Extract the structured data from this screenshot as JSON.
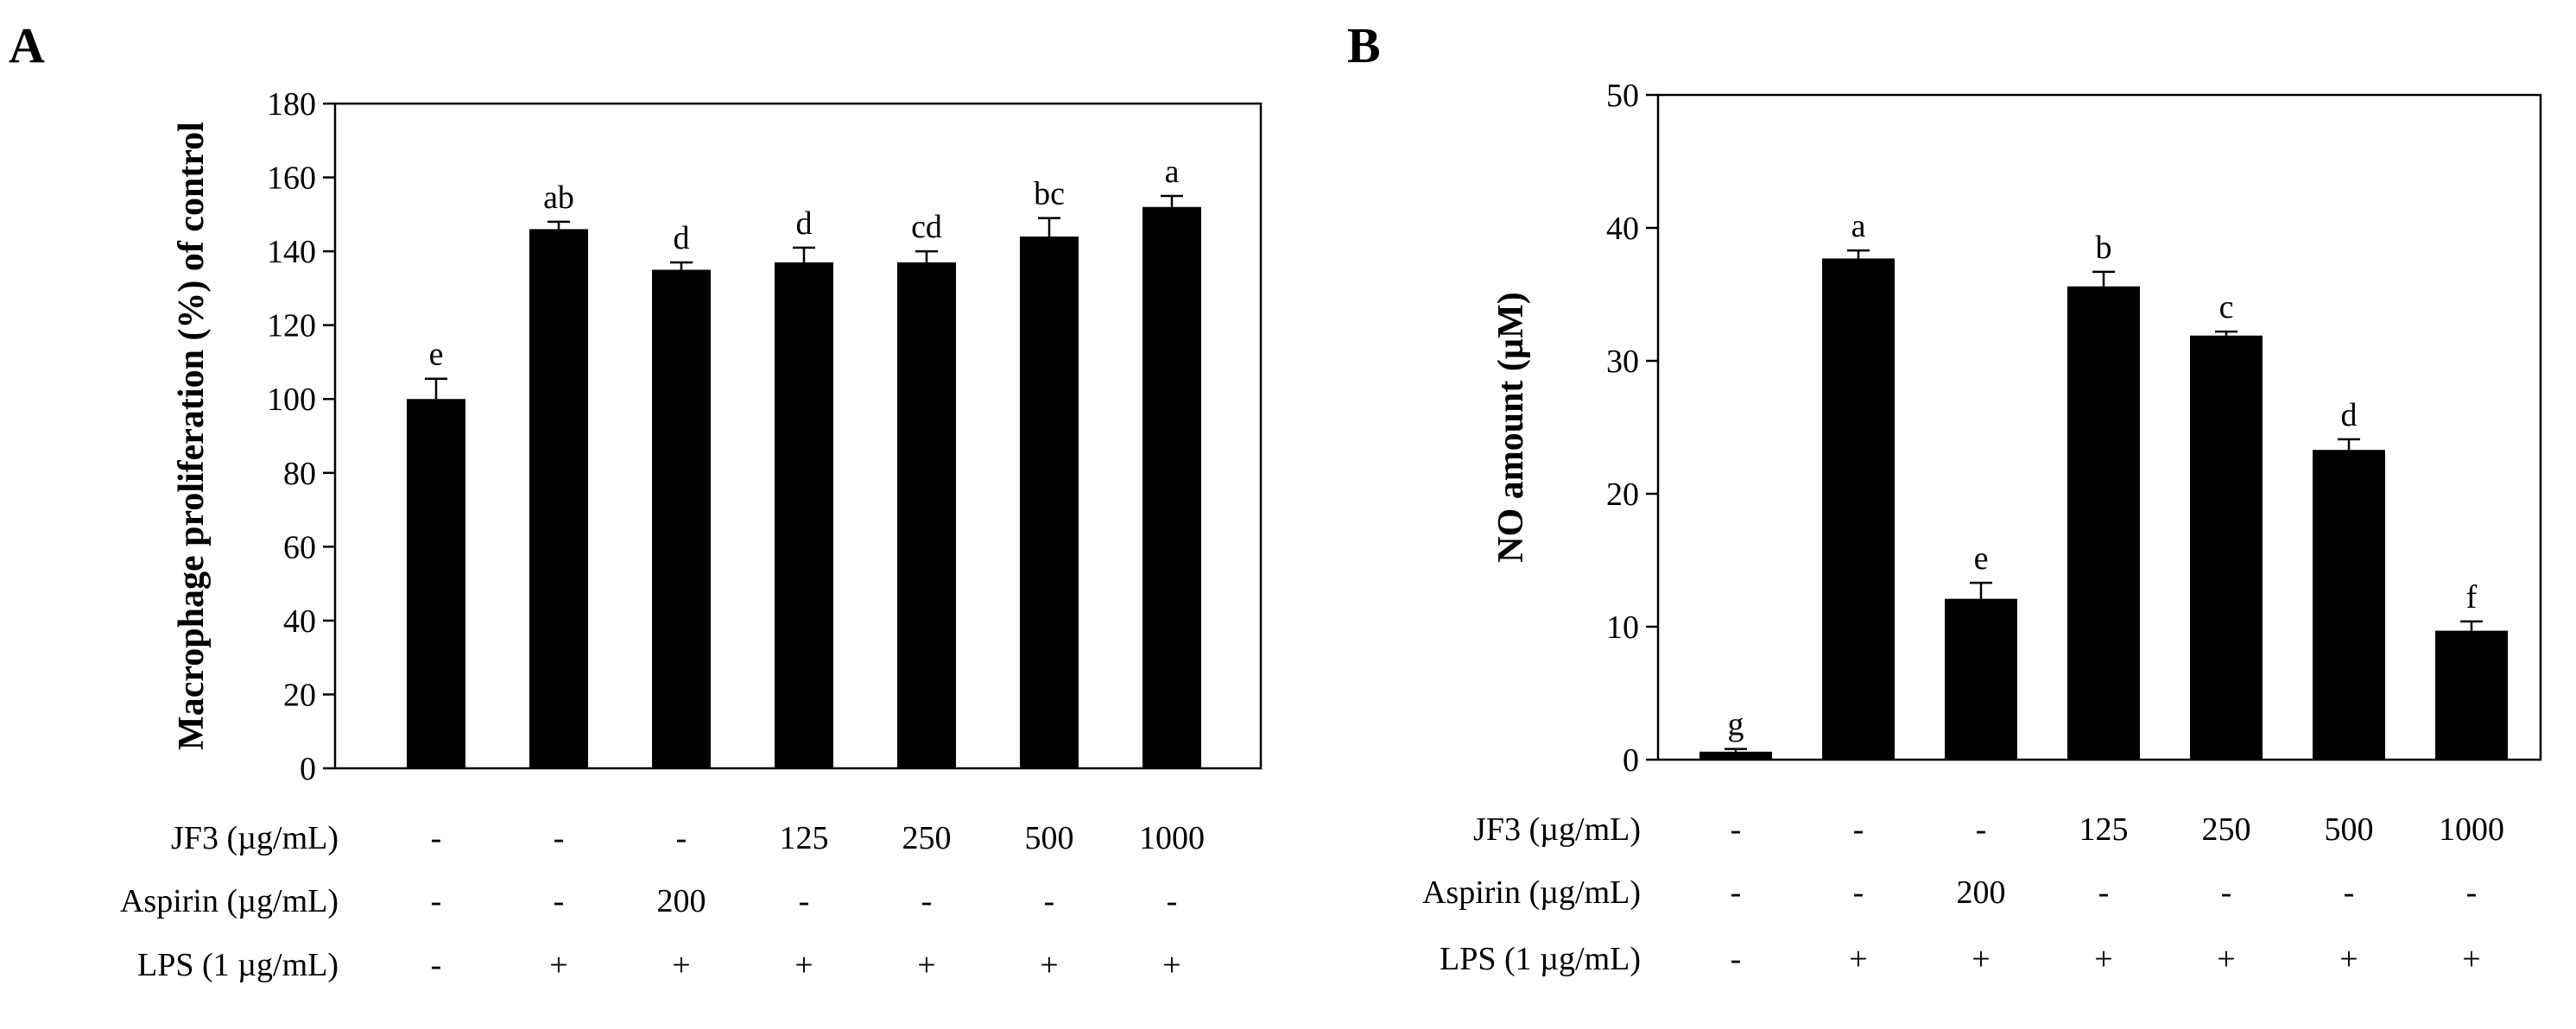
{
  "chart_data": [
    {
      "type": "bar",
      "panel": "A",
      "ylabel": "Macrophage proliferation (%) of control",
      "ylim": [
        0,
        180
      ],
      "yticks": [
        0,
        20,
        40,
        60,
        80,
        100,
        120,
        140,
        160,
        180
      ],
      "values": [
        100,
        146,
        135,
        137,
        137,
        144,
        152
      ],
      "errors": [
        5.5,
        2,
        2,
        4,
        3,
        5,
        3
      ],
      "significance": [
        "e",
        "ab",
        "d",
        "d",
        "cd",
        "bc",
        "a"
      ],
      "conditions": [
        {
          "label": "JF3 (µg/mL)",
          "values": [
            "-",
            "-",
            "-",
            "125",
            "250",
            "500",
            "1000"
          ]
        },
        {
          "label": "Aspirin (µg/mL)",
          "values": [
            "-",
            "-",
            "200",
            "-",
            "-",
            "-",
            "-"
          ]
        },
        {
          "label": "LPS (1 µg/mL)",
          "values": [
            "-",
            "+",
            "+",
            "+",
            "+",
            "+",
            "+"
          ]
        }
      ]
    },
    {
      "type": "bar",
      "panel": "B",
      "ylabel": "NO amount (µM)",
      "ylim": [
        0,
        50
      ],
      "yticks": [
        0,
        10,
        20,
        30,
        40,
        50
      ],
      "values": [
        0.6,
        37.7,
        12.1,
        35.6,
        31.9,
        23.3,
        9.7
      ],
      "errors": [
        0.2,
        0.6,
        1.2,
        1.1,
        0.3,
        0.8,
        0.7
      ],
      "significance": [
        "g",
        "a",
        "e",
        "b",
        "c",
        "d",
        "f"
      ],
      "conditions": [
        {
          "label": "JF3 (µg/mL)",
          "values": [
            "-",
            "-",
            "-",
            "125",
            "250",
            "500",
            "1000"
          ]
        },
        {
          "label": "Aspirin (µg/mL)",
          "values": [
            "-",
            "-",
            "200",
            "-",
            "-",
            "-",
            "-"
          ]
        },
        {
          "label": "LPS (1 µg/mL)",
          "values": [
            "-",
            "+",
            "+",
            "+",
            "+",
            "+",
            "+"
          ]
        }
      ]
    }
  ]
}
